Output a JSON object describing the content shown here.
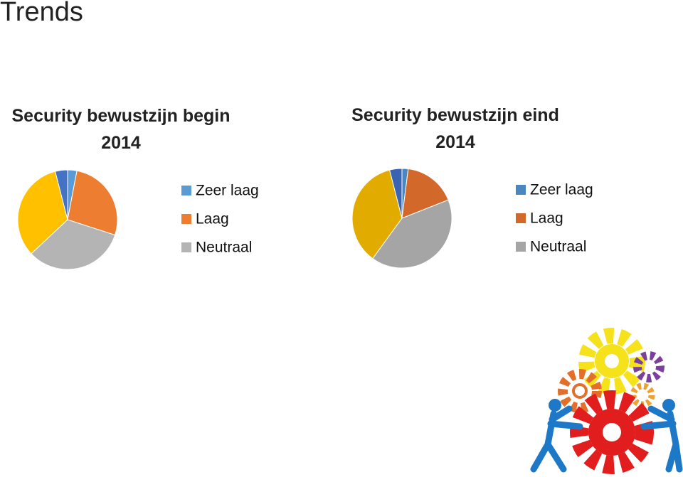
{
  "title": "Trends",
  "chart_data": [
    {
      "type": "pie",
      "title": "Security bewustzijn begin 2014",
      "categories": [
        "Zeer laag",
        "Laag",
        "Neutraal",
        null,
        null
      ],
      "values": [
        3,
        27,
        33,
        33,
        4
      ],
      "colors": [
        "#5b9bd5",
        "#ed7d31",
        "#b4b4b4",
        "#ffc000",
        "#4472c4"
      ]
    },
    {
      "type": "pie",
      "title": "Security bewustzijn eind 2014",
      "categories": [
        "Zeer laag",
        "Laag",
        "Neutraal",
        null,
        null
      ],
      "values": [
        2,
        17,
        41,
        36,
        4
      ],
      "colors": [
        "#4a86c0",
        "#d2692a",
        "#a5a5a5",
        "#e2ab00",
        "#3a64b2"
      ]
    }
  ]
}
